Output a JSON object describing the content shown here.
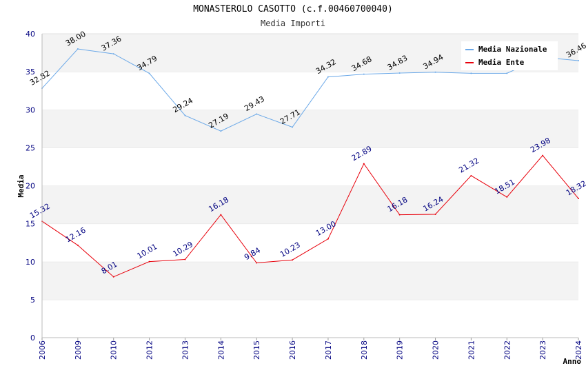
{
  "chart_data": {
    "type": "line",
    "title": "MONASTEROLO CASOTTO (c.f.00460700040)",
    "subtitle": "Media Importi",
    "xlabel": "Anno",
    "ylabel": "Media",
    "ylim": [
      0,
      40
    ],
    "yticks": [
      "0",
      "5",
      "10",
      "15",
      "20",
      "25",
      "30",
      "35",
      "40"
    ],
    "categories": [
      "2006",
      "2009",
      "2010",
      "2012",
      "2013",
      "2014",
      "2015",
      "2016",
      "2017",
      "2018",
      "2019",
      "2020",
      "2021",
      "2022",
      "2023",
      "2024"
    ],
    "series": [
      {
        "name": "Media Nazionale",
        "color": "#6aa8e8",
        "values": [
          32.82,
          38.0,
          37.36,
          34.79,
          29.24,
          27.19,
          29.43,
          27.71,
          34.32,
          34.68,
          34.83,
          34.94,
          34.8,
          34.8,
          36.9,
          36.46
        ],
        "labels": [
          "32.82",
          "38.00",
          "37.36",
          "34.79",
          "29.24",
          "27.19",
          "29.43",
          "27.71",
          "34.32",
          "34.68",
          "34.83",
          "34.94",
          "",
          "",
          "",
          "36.46"
        ]
      },
      {
        "name": "Media Ente",
        "color": "#e8000b",
        "values": [
          15.32,
          12.16,
          8.01,
          10.01,
          10.29,
          16.18,
          9.84,
          10.23,
          13.0,
          22.89,
          16.18,
          16.24,
          21.32,
          18.51,
          23.98,
          18.32
        ],
        "labels": [
          "15.32",
          "12.16",
          "8.01",
          "10.01",
          "10.29",
          "16.18",
          "9.84",
          "10.23",
          "13.00",
          "22.89",
          "16.18",
          "16.24",
          "21.32",
          "18.51",
          "23.98",
          "18.32"
        ]
      }
    ],
    "legend": "top-right",
    "grid": true
  }
}
